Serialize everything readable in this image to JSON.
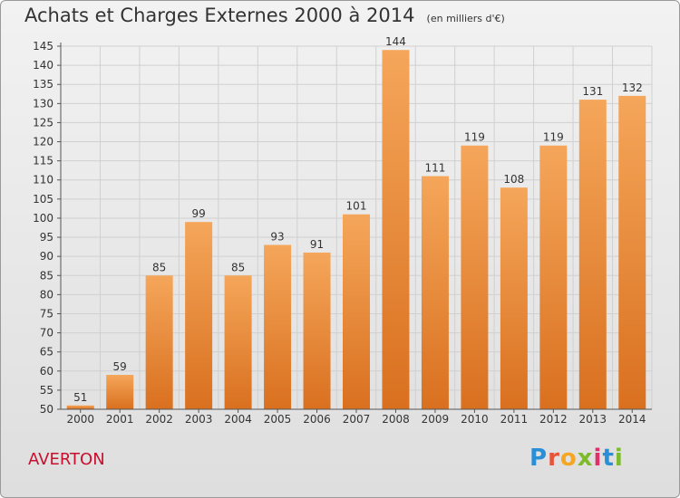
{
  "title": {
    "main": "Achats et Charges Externes 2000 à 2014",
    "unit": "(en milliers d'€)"
  },
  "commune": "AVERTON",
  "logo": {
    "letters": [
      "P",
      "r",
      "o",
      "x",
      "i",
      "t",
      "i"
    ],
    "colors": [
      "#2a8fd6",
      "#e8543a",
      "#f5a623",
      "#7dbb2c",
      "#e0306a",
      "#2a8fd6",
      "#7dbb2c"
    ]
  },
  "chart_data": {
    "type": "bar",
    "categories": [
      "2000",
      "2001",
      "2002",
      "2003",
      "2004",
      "2005",
      "2006",
      "2007",
      "2008",
      "2009",
      "2010",
      "2011",
      "2012",
      "2013",
      "2014"
    ],
    "values": [
      51,
      59,
      85,
      99,
      85,
      93,
      91,
      101,
      144,
      111,
      119,
      108,
      119,
      131,
      132
    ],
    "ylim": [
      50,
      145
    ],
    "yticks": [
      50,
      55,
      60,
      65,
      70,
      75,
      80,
      85,
      90,
      95,
      100,
      105,
      110,
      115,
      120,
      125,
      130,
      135,
      140,
      145
    ],
    "grid": true,
    "bar_color_top": "#f5a65a",
    "bar_color_bottom": "#d9701f"
  }
}
